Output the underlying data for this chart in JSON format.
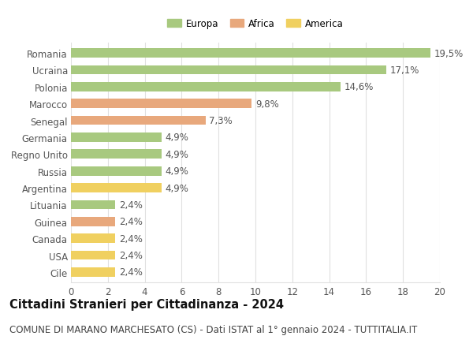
{
  "title": "Cittadini Stranieri per Cittadinanza - 2024",
  "subtitle": "COMUNE DI MARANO MARCHESATO (CS) - Dati ISTAT al 1° gennaio 2024 - TUTTITALIA.IT",
  "categories": [
    "Romania",
    "Ucraina",
    "Polonia",
    "Marocco",
    "Senegal",
    "Germania",
    "Regno Unito",
    "Russia",
    "Argentina",
    "Lituania",
    "Guinea",
    "Canada",
    "USA",
    "Cile"
  ],
  "values": [
    19.5,
    17.1,
    14.6,
    9.8,
    7.3,
    4.9,
    4.9,
    4.9,
    4.9,
    2.4,
    2.4,
    2.4,
    2.4,
    2.4
  ],
  "labels": [
    "19,5%",
    "17,1%",
    "14,6%",
    "9,8%",
    "7,3%",
    "4,9%",
    "4,9%",
    "4,9%",
    "4,9%",
    "2,4%",
    "2,4%",
    "2,4%",
    "2,4%",
    "2,4%"
  ],
  "continents": [
    "Europa",
    "Europa",
    "Europa",
    "Africa",
    "Africa",
    "Europa",
    "Europa",
    "Europa",
    "America",
    "Europa",
    "Africa",
    "America",
    "America",
    "America"
  ],
  "colors": {
    "Europa": "#a8c97f",
    "Africa": "#e8a87c",
    "America": "#f0d060"
  },
  "xlim": [
    0,
    20
  ],
  "xticks": [
    0,
    2,
    4,
    6,
    8,
    10,
    12,
    14,
    16,
    18,
    20
  ],
  "background_color": "#ffffff",
  "grid_color": "#e0e0e0",
  "bar_height": 0.55,
  "label_fontsize": 8.5,
  "title_fontsize": 10.5,
  "subtitle_fontsize": 8.5
}
